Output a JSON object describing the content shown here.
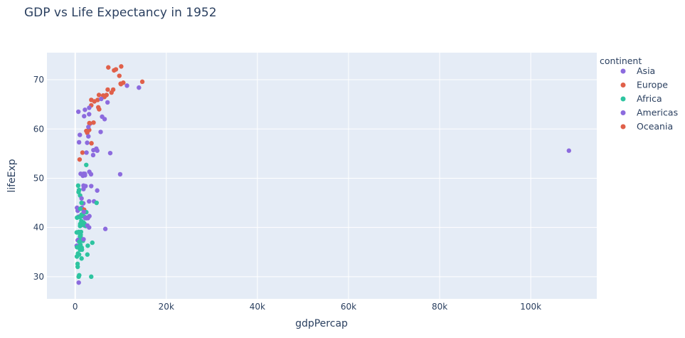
{
  "chart_data": {
    "type": "scatter",
    "title": "GDP vs Life Expectancy in 1952",
    "xlabel": "gdpPercap",
    "ylabel": "lifeExp",
    "xlim": [
      -6200,
      114500
    ],
    "ylim": [
      25.5,
      75.5
    ],
    "x_ticks": [
      0,
      20000,
      40000,
      60000,
      80000,
      100000
    ],
    "x_tick_labels": [
      "0",
      "20k",
      "40k",
      "60k",
      "80k",
      "100k"
    ],
    "y_ticks": [
      30,
      40,
      50,
      60,
      70
    ],
    "y_tick_labels": [
      "30",
      "40",
      "50",
      "60",
      "70"
    ],
    "grid": true,
    "plot_bgcolor": "#e5ecf6",
    "grid_color": "#ffffff",
    "legend": {
      "title": "continent",
      "placement": "right",
      "entries": [
        {
          "label": "Asia",
          "color": "#8c6bde"
        },
        {
          "label": "Europe",
          "color": "#e0604a"
        },
        {
          "label": "Africa",
          "color": "#2ec4a0"
        },
        {
          "label": "Americas",
          "color": "#8c6bde"
        },
        {
          "label": "Oceania",
          "color": "#e0604a"
        }
      ]
    },
    "series": [
      {
        "name": "Asia",
        "color": "#8c6bde",
        "points": [
          [
            780,
            28.8
          ],
          [
            1200,
            50.9
          ],
          [
            1830,
            50.9
          ],
          [
            684,
            37.5
          ],
          [
            400,
            44.0
          ],
          [
            3055,
            63.0
          ],
          [
            547,
            37.4
          ],
          [
            750,
            37.4
          ],
          [
            1790,
            44.9
          ],
          [
            4130,
            45.3
          ],
          [
            7100,
            65.4
          ],
          [
            4830,
            47.5
          ],
          [
            108380,
            55.6
          ],
          [
            4840,
            55.6
          ],
          [
            1830,
            48.5
          ],
          [
            786,
            42.2
          ],
          [
            1690,
            50.5
          ],
          [
            2140,
            63.9
          ],
          [
            331,
            36.3
          ],
          [
            546,
            43.4
          ],
          [
            1840,
            43.0
          ],
          [
            6460,
            62.0
          ],
          [
            1360,
            37.4
          ],
          [
            1820,
            47.8
          ],
          [
            2480,
            41.9
          ],
          [
            1460,
            44.0
          ],
          [
            2000,
            40.4
          ],
          [
            3300,
            61.1
          ],
          [
            700,
            63.5
          ]
        ]
      },
      {
        "name": "Europe",
        "color": "#e0604a",
        "points": [
          [
            1600,
            55.2
          ],
          [
            6140,
            66.8
          ],
          [
            8340,
            68.0
          ],
          [
            973,
            53.8
          ],
          [
            2440,
            59.6
          ],
          [
            3120,
            61.2
          ],
          [
            6880,
            66.9
          ],
          [
            9690,
            70.8
          ],
          [
            6420,
            66.5
          ],
          [
            7970,
            67.4
          ],
          [
            7140,
            68.0
          ],
          [
            3530,
            65.9
          ],
          [
            5260,
            64.0
          ],
          [
            7270,
            72.5
          ],
          [
            5210,
            66.9
          ],
          [
            4930,
            65.9
          ],
          [
            2650,
            59.2
          ],
          [
            8940,
            72.1
          ],
          [
            10100,
            72.7
          ],
          [
            4030,
            61.3
          ],
          [
            3070,
            59.8
          ],
          [
            3140,
            61.1
          ],
          [
            3580,
            57.1
          ],
          [
            5070,
            64.4
          ],
          [
            4220,
            65.6
          ],
          [
            3530,
            64.8
          ],
          [
            8530,
            71.9
          ],
          [
            14730,
            69.6
          ],
          [
            1970,
            43.6
          ],
          [
            9980,
            69.2
          ]
        ]
      },
      {
        "name": "Africa",
        "color": "#2ec4a0",
        "points": [
          [
            2450,
            43.1
          ],
          [
            3520,
            30.0
          ],
          [
            1060,
            38.2
          ],
          [
            851,
            47.6
          ],
          [
            543,
            32.0
          ],
          [
            339,
            39.0
          ],
          [
            1170,
            38.5
          ],
          [
            1070,
            35.5
          ],
          [
            1180,
            38.1
          ],
          [
            1100,
            40.7
          ],
          [
            781,
            39.1
          ],
          [
            2130,
            42.1
          ],
          [
            1390,
            40.5
          ],
          [
            2670,
            34.5
          ],
          [
            1420,
            35.9
          ],
          [
            375,
            34.1
          ],
          [
            1030,
            42.1
          ],
          [
            859,
            34.5
          ],
          [
            1000,
            35.9
          ],
          [
            1400,
            42.6
          ],
          [
            880,
            37.1
          ],
          [
            1480,
            35.5
          ],
          [
            575,
            39.0
          ],
          [
            2010,
            40.8
          ],
          [
            2430,
            52.7
          ],
          [
            1150,
            36.5
          ],
          [
            1400,
            33.7
          ],
          [
            1140,
            38.2
          ],
          [
            3760,
            36.9
          ],
          [
            1080,
            40.3
          ],
          [
            520,
            32.6
          ],
          [
            740,
            47.2
          ],
          [
            1080,
            46.5
          ],
          [
            761,
            30.0
          ],
          [
            1390,
            45.0
          ],
          [
            1700,
            37.3
          ],
          [
            4700,
            45.0
          ],
          [
            1420,
            42.3
          ],
          [
            1170,
            40.7
          ],
          [
            761,
            39.0
          ],
          [
            1350,
            41.3
          ],
          [
            1200,
            38.5
          ],
          [
            2760,
            36.3
          ],
          [
            880,
            30.3
          ],
          [
            1280,
            39.1
          ],
          [
            1800,
            42.3
          ],
          [
            650,
            48.5
          ],
          [
            1430,
            37.5
          ],
          [
            1130,
            43.8
          ],
          [
            400,
            36.0
          ],
          [
            406,
            42.0
          ],
          [
            600,
            34.7
          ],
          [
            1800,
            41.0
          ],
          [
            2300,
            40.3
          ]
        ]
      },
      {
        "name": "Americas",
        "color": "#8c6bde",
        "points": [
          [
            5910,
            62.5
          ],
          [
            2680,
            40.4
          ],
          [
            2110,
            50.9
          ],
          [
            11370,
            68.8
          ],
          [
            3940,
            54.7
          ],
          [
            2140,
            50.6
          ],
          [
            2630,
            57.2
          ],
          [
            5590,
            59.4
          ],
          [
            1400,
            45.9
          ],
          [
            3520,
            48.4
          ],
          [
            3050,
            45.3
          ],
          [
            2430,
            42.0
          ],
          [
            2430,
            41.9
          ],
          [
            1840,
            37.6
          ],
          [
            2190,
            41.9
          ],
          [
            2900,
            58.5
          ],
          [
            3480,
            50.8
          ],
          [
            3120,
            42.3
          ],
          [
            2480,
            55.2
          ],
          [
            1960,
            62.6
          ],
          [
            2270,
            48.4
          ],
          [
            3080,
            64.3
          ],
          [
            6620,
            39.7
          ],
          [
            13990,
            68.4
          ],
          [
            5720,
            66.1
          ],
          [
            7690,
            55.1
          ],
          [
            2800,
            41.9
          ],
          [
            9870,
            50.8
          ],
          [
            3050,
            40.0
          ],
          [
            3110,
            51.3
          ],
          [
            2900,
            60.4
          ],
          [
            4000,
            55.7
          ],
          [
            4640,
            56.0
          ],
          [
            850,
            57.3
          ],
          [
            1890,
            43.2
          ],
          [
            1020,
            58.8
          ]
        ]
      },
      {
        "name": "Oceania",
        "color": "#e0604a",
        "points": [
          [
            10040,
            69.1
          ],
          [
            10560,
            69.4
          ]
        ]
      }
    ]
  }
}
